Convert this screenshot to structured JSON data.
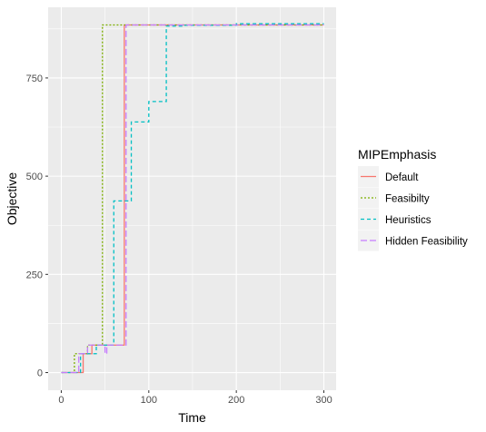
{
  "chart_data": {
    "type": "line",
    "step": true,
    "xlabel": "Time",
    "ylabel": "Objective",
    "xlim": [
      -15,
      314
    ],
    "ylim": [
      -45,
      930
    ],
    "x_ticks": [
      0,
      100,
      200,
      300
    ],
    "x_minor_ticks": [
      50,
      150,
      250
    ],
    "y_ticks": [
      0,
      250,
      500,
      750
    ],
    "y_minor_ticks": [
      125,
      375,
      625,
      875
    ],
    "grid": true,
    "legend": {
      "title": "MIPEmphasis",
      "position": "right"
    },
    "series": [
      {
        "name": "Default",
        "color": "#F8766D",
        "dash": "solid",
        "points": [
          [
            0,
            0
          ],
          [
            25,
            0
          ],
          [
            25,
            48
          ],
          [
            35,
            48
          ],
          [
            35,
            70
          ],
          [
            50,
            70
          ],
          [
            50,
            70
          ],
          [
            72,
            70
          ],
          [
            72,
            885
          ],
          [
            300,
            885
          ]
        ]
      },
      {
        "name": "Feasibilty",
        "color": "#7CAE00",
        "dash": "dotted",
        "points": [
          [
            0,
            0
          ],
          [
            15,
            0
          ],
          [
            15,
            48
          ],
          [
            30,
            48
          ],
          [
            30,
            70
          ],
          [
            47,
            70
          ],
          [
            47,
            885
          ],
          [
            300,
            885
          ]
        ]
      },
      {
        "name": "Heuristics",
        "color": "#00BFC4",
        "dash": "dashed",
        "points": [
          [
            0,
            0
          ],
          [
            22,
            0
          ],
          [
            22,
            48
          ],
          [
            40,
            48
          ],
          [
            40,
            70
          ],
          [
            60,
            70
          ],
          [
            60,
            437
          ],
          [
            80,
            437
          ],
          [
            80,
            638
          ],
          [
            100,
            638
          ],
          [
            100,
            690
          ],
          [
            120,
            690
          ],
          [
            120,
            882
          ],
          [
            140,
            882
          ],
          [
            140,
            884
          ],
          [
            200,
            884
          ],
          [
            200,
            888
          ],
          [
            300,
            888
          ]
        ]
      },
      {
        "name": "Hidden Feasibility",
        "color": "#C77CFF",
        "dash": "longdash",
        "points": [
          [
            0,
            0
          ],
          [
            20,
            0
          ],
          [
            20,
            48
          ],
          [
            30,
            48
          ],
          [
            30,
            70
          ],
          [
            50,
            70
          ],
          [
            50,
            48
          ],
          [
            52,
            48
          ],
          [
            52,
            70
          ],
          [
            74,
            70
          ],
          [
            74,
            885
          ],
          [
            300,
            885
          ]
        ]
      }
    ]
  }
}
